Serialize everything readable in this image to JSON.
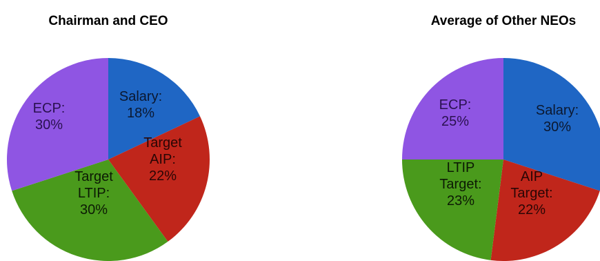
{
  "chart_data": [
    {
      "type": "pie",
      "title": "Chairman and CEO",
      "slices": [
        {
          "label_lines": [
            "Salary:",
            "18%"
          ],
          "value": 18,
          "color": "#1f66c4"
        },
        {
          "label_lines": [
            "Target",
            "AIP:",
            "22%"
          ],
          "value": 22,
          "color": "#c0261b"
        },
        {
          "label_lines": [
            "Target",
            "LTIP:",
            "30%"
          ],
          "value": 30,
          "color": "#4a9a1c"
        },
        {
          "label_lines": [
            "ECP:",
            "30%"
          ],
          "value": 30,
          "color": "#8f55e3"
        }
      ]
    },
    {
      "type": "pie",
      "title": "Average of Other NEOs",
      "slices": [
        {
          "label_lines": [
            "Salary:",
            "30%"
          ],
          "value": 30,
          "color": "#1f66c4"
        },
        {
          "label_lines": [
            "AIP",
            "Target:",
            "22%"
          ],
          "value": 22,
          "color": "#c0261b"
        },
        {
          "label_lines": [
            "LTIP",
            "Target:",
            "23%"
          ],
          "value": 23,
          "color": "#4a9a1c"
        },
        {
          "label_lines": [
            "ECP:",
            "25%"
          ],
          "value": 25,
          "color": "#8f55e3"
        }
      ]
    }
  ]
}
